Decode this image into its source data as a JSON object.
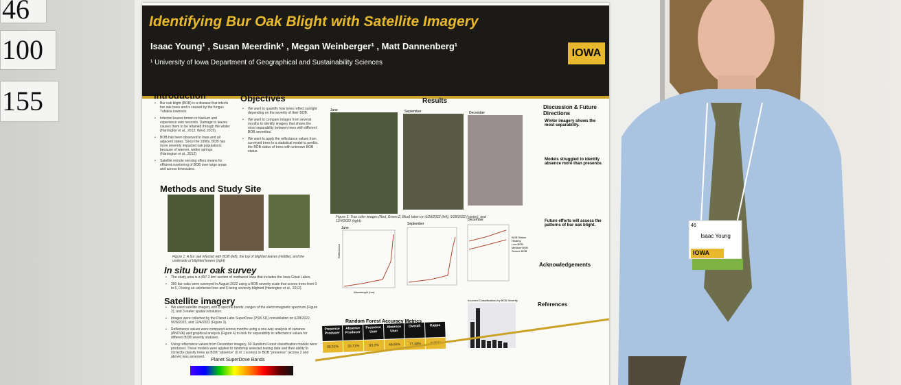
{
  "board_labels": [
    "46",
    "100",
    "155"
  ],
  "poster": {
    "title": "Identifying Bur Oak Blight with Satellite Imagery",
    "authors": "Isaac Young¹ , Susan Meerdink¹ , Megan Weinberger¹ , Matt Dannenberg¹",
    "affiliation": "¹ University of Iowa Department of Geographical and Sustainability Sciences",
    "logo": "IOWA",
    "introduction": {
      "heading": "Introduction",
      "bullets": [
        "Bur oak blight (BOB) is a disease that infects bur oak trees and is caused by the fungus Tubakia iowensis.",
        "Infected leaves brown or blacken and experience vein necrosis. Damage to leaves causes them to be retained through the winter (Harrington et al., 2012; West, 2015).",
        "BOB has been observed in Iowa and all adjacent states. Since the 1990s, BOB has more severely impacted oak populations because of warmer, wetter springs (Harrington et al., 2012).",
        "Satellite remote sensing offers means for efficient monitoring of BOB over large areas and across timescales."
      ]
    },
    "objectives": {
      "heading": "Objectives",
      "bullets": [
        "We want to quantify how trees reflect sunlight depending on the severity of their BOB.",
        "We want to compare images from several months to identify imagery that shows the most separability between trees with different BOB severities.",
        "We want to apply the reflectance values from surveyed trees to a statistical model to predict the BOB status of trees with unknown BOB status."
      ]
    },
    "methods": {
      "heading": "Methods and Study Site",
      "figure_caption": "Figure 1: A bur oak infected with BOB (left), the top of blighted leaves (middle), and the underside of blighted leaves (right)",
      "survey_heading": "In situ bur oak survey",
      "survey_bullets": [
        "The study area is a 497.3 km² section of northwest Iowa that includes the Iowa Great Lakes.",
        "390 bur oaks were surveyed in August 2022 using a BOB severity scale that scores trees from 0 to 6, 0 being an uninfected tree and 6 being severely blighted (Harrington et al., 2012)."
      ],
      "imagery_heading": "Satellite imagery",
      "imagery_bullets": [
        "We used satellite imagery with 8 spectral bands, ranges of the electromagnetic spectrum (Figure 2), and 3-meter spatial resolution.",
        "Images were collected by the Planet Labs SuperDove (PSB.SD) constellation on 6/28/2022, 9/28/2022, and 12/4/2022 (Figure 3).",
        "Reflectance values were compared across months using a one-way analysis of variance (ANOVA) and graphical analysis (Figure 4) to look for separability in reflectance values for different BOB severity statuses.",
        "Using reflectance values from December imagery, 50 Random Forest classification models were produced. These models were applied to randomly selected testing data and their ability to correctly classify trees as BOB \"absence\" (0 or 1 scores) or BOB \"presence\" (scores 2 and above) was assessed."
      ],
      "bands_title": "Planet SuperDove Bands"
    },
    "results": {
      "heading": "Results",
      "months": [
        "June",
        "September",
        "December"
      ],
      "figure2_caption": "Figure 3: True color images (Red, Green 2, Blue) taken on 6/28/2022 (left), 9/28/2022 (center), and 12/4/2022 (right)",
      "y_label": "Reflectance",
      "x_label": "Wavelength (nm)",
      "legend_title": "BOB Status",
      "legend": [
        "Healthy",
        "Low BOB",
        "Medium BOB",
        "Severe BOB"
      ]
    },
    "accuracy_table": {
      "title": "Random Forest Accuracy Metrics",
      "headers": [
        "Presence Producer",
        "Absence Producer",
        "Presence User",
        "Absence User",
        "Overall",
        "Kappa"
      ],
      "values": [
        "89.51%",
        "33.71%",
        "93.2%",
        "46.65%",
        "77.48%",
        "0.2526"
      ]
    },
    "histogram_title": "Incorrect Classifications by BOB Severity",
    "discussion": {
      "heading": "Discussion & Future Directions",
      "points": [
        "Winter imagery shows the most separability.",
        "Models struggled to identify absence more than presence.",
        "Future efforts will assess the patterns of bur oak blight."
      ]
    },
    "acknowledgements": "Acknowledgements",
    "references": "References"
  },
  "badge": {
    "number": "46",
    "name": "Isaac Young",
    "org": "IOWA"
  }
}
